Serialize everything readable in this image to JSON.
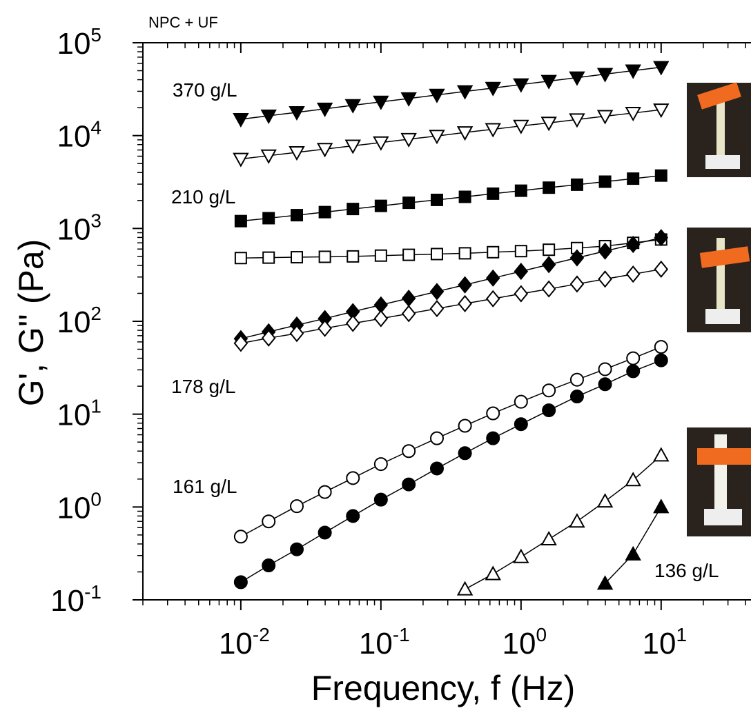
{
  "chart_data": {
    "type": "scatter",
    "title": "NPC + UF",
    "x_label": "Frequency, f (Hz)",
    "y_label": "G', G'' (Pa)",
    "annotations": [
      "370 g/L",
      "210 g/L",
      "178 g/L",
      "161 g/L",
      "136 g/L"
    ],
    "xscale": "log",
    "yscale": "log",
    "xlim": [
      0.002,
      40
    ],
    "ylim": [
      0.1,
      100000
    ],
    "xticks": [
      {
        "value": 0.01,
        "label": "10",
        "exponent": "-2"
      },
      {
        "value": 0.1,
        "label": "10",
        "exponent": "-1"
      },
      {
        "value": 1,
        "label": "10",
        "exponent": "0"
      },
      {
        "value": 10,
        "label": "10",
        "exponent": "1"
      }
    ],
    "yticks": [
      {
        "value": 0.1,
        "label": "10",
        "exponent": "-1"
      },
      {
        "value": 1,
        "label": "10",
        "exponent": "0"
      },
      {
        "value": 10,
        "label": "10",
        "exponent": "1"
      },
      {
        "value": 100,
        "label": "10",
        "exponent": "2"
      },
      {
        "value": 1000,
        "label": "10",
        "exponent": "3"
      },
      {
        "value": 10000,
        "label": "10",
        "exponent": "4"
      },
      {
        "value": 100000,
        "label": "10",
        "exponent": "5"
      }
    ],
    "series": [
      {
        "marker": "triangle-down",
        "filled": true,
        "color": "#000000",
        "x": [
          0.01,
          0.0158,
          0.0251,
          0.0398,
          0.0631,
          0.1,
          0.158,
          0.251,
          0.398,
          0.631,
          1,
          1.58,
          2.51,
          3.98,
          6.31,
          10
        ],
        "values": [
          15000,
          16350,
          17800,
          19400,
          21200,
          23100,
          25100,
          27400,
          29900,
          32500,
          35500,
          38600,
          42100,
          45900,
          50000,
          54500
        ]
      },
      {
        "marker": "triangle-down",
        "filled": false,
        "color": "#000000",
        "x": [
          0.01,
          0.0158,
          0.0251,
          0.0398,
          0.0631,
          0.1,
          0.158,
          0.251,
          0.398,
          0.631,
          1,
          1.58,
          2.51,
          3.98,
          6.31,
          10
        ],
        "values": [
          5600,
          6080,
          6590,
          7150,
          7760,
          8420,
          9140,
          9910,
          10800,
          11700,
          12700,
          13700,
          14900,
          16200,
          17500,
          19000
        ]
      },
      {
        "marker": "square",
        "filled": true,
        "color": "#000000",
        "x": [
          0.01,
          0.0158,
          0.0251,
          0.0398,
          0.0631,
          0.1,
          0.158,
          0.251,
          0.398,
          0.631,
          1,
          1.58,
          2.51,
          3.98,
          6.31,
          10
        ],
        "values": [
          1200,
          1290,
          1390,
          1500,
          1620,
          1750,
          1890,
          2030,
          2190,
          2370,
          2550,
          2750,
          2960,
          3190,
          3440,
          3710
        ]
      },
      {
        "marker": "square",
        "filled": false,
        "color": "#000000",
        "x": [
          0.01,
          0.0158,
          0.0251,
          0.0398,
          0.0631,
          0.1,
          0.158,
          0.251,
          0.398,
          0.631,
          1,
          1.58,
          2.51,
          3.98,
          6.31,
          10
        ],
        "values": [
          480,
          485,
          490,
          495,
          500,
          510,
          520,
          530,
          540,
          555,
          570,
          590,
          615,
          645,
          700,
          760
        ]
      },
      {
        "marker": "diamond",
        "filled": true,
        "color": "#000000",
        "x": [
          0.01,
          0.0158,
          0.0251,
          0.0398,
          0.0631,
          0.1,
          0.158,
          0.251,
          0.398,
          0.631,
          1,
          1.58,
          2.51,
          3.98,
          6.31,
          10
        ],
        "values": [
          65,
          77,
          91,
          107,
          127,
          150,
          177,
          209,
          247,
          292,
          345,
          408,
          482,
          570,
          673,
          796
        ]
      },
      {
        "marker": "diamond",
        "filled": false,
        "color": "#000000",
        "x": [
          0.01,
          0.0158,
          0.0251,
          0.0398,
          0.0631,
          0.1,
          0.158,
          0.251,
          0.398,
          0.631,
          1,
          1.58,
          2.51,
          3.98,
          6.31,
          10
        ],
        "values": [
          58,
          66,
          74,
          84,
          95,
          107,
          121,
          137,
          155,
          175,
          198,
          223,
          252,
          285,
          322,
          364
        ]
      },
      {
        "marker": "circle",
        "filled": false,
        "color": "#000000",
        "x": [
          0.01,
          0.0158,
          0.0251,
          0.0398,
          0.0631,
          0.1,
          0.158,
          0.251,
          0.398,
          0.631,
          1,
          1.58,
          2.51,
          3.98,
          6.31,
          10
        ],
        "values": [
          0.48,
          0.7,
          1.02,
          1.45,
          2.05,
          2.9,
          4.0,
          5.5,
          7.5,
          10.2,
          13.6,
          18,
          23.5,
          30.5,
          40,
          53
        ]
      },
      {
        "marker": "circle",
        "filled": true,
        "color": "#000000",
        "x": [
          0.01,
          0.0158,
          0.0251,
          0.0398,
          0.0631,
          0.1,
          0.158,
          0.251,
          0.398,
          0.631,
          1,
          1.58,
          2.51,
          3.98,
          6.31,
          10
        ],
        "values": [
          0.155,
          0.235,
          0.35,
          0.53,
          0.8,
          1.2,
          1.75,
          2.6,
          3.8,
          5.5,
          7.8,
          11,
          15.5,
          21,
          29,
          38
        ]
      },
      {
        "marker": "triangle-up",
        "filled": false,
        "color": "#000000",
        "x": [
          0.398,
          0.631,
          1,
          1.58,
          2.51,
          3.98,
          6.31,
          10
        ],
        "values": [
          0.13,
          0.19,
          0.29,
          0.45,
          0.7,
          1.15,
          1.95,
          3.6
        ]
      },
      {
        "marker": "triangle-up",
        "filled": true,
        "color": "#000000",
        "x": [
          3.98,
          6.31,
          10
        ],
        "values": [
          0.15,
          0.31,
          1.0
        ]
      }
    ]
  }
}
